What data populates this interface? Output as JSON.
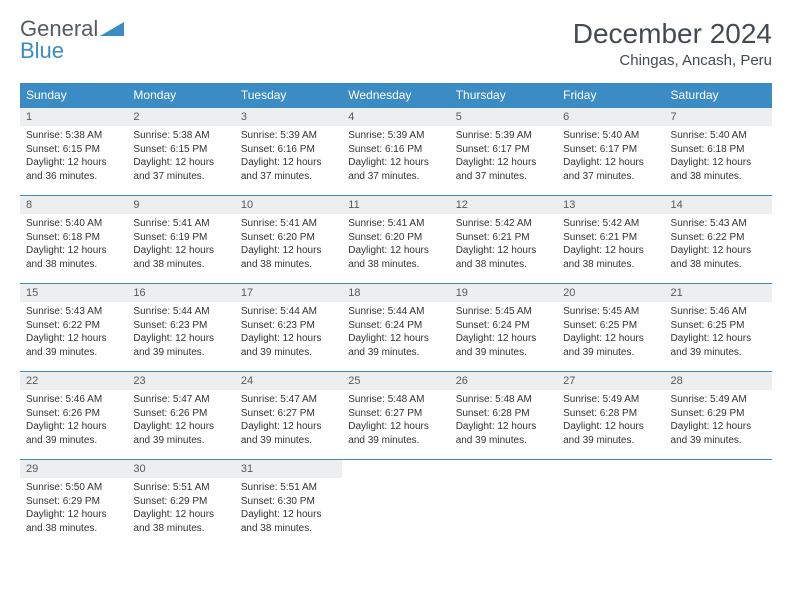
{
  "logo": {
    "text_general": "General",
    "text_blue": "Blue"
  },
  "title": "December 2024",
  "location": "Chingas, Ancash, Peru",
  "colors": {
    "header_bg": "#3b8bc4",
    "header_text": "#ffffff",
    "daynum_bg": "#eceeef",
    "border": "#3b8bc4",
    "body_text": "#333333",
    "title_text": "#444b52"
  },
  "weekdays": [
    "Sunday",
    "Monday",
    "Tuesday",
    "Wednesday",
    "Thursday",
    "Friday",
    "Saturday"
  ],
  "days": [
    {
      "n": 1,
      "sr": "5:38 AM",
      "ss": "6:15 PM",
      "dl": "12 hours and 36 minutes."
    },
    {
      "n": 2,
      "sr": "5:38 AM",
      "ss": "6:15 PM",
      "dl": "12 hours and 37 minutes."
    },
    {
      "n": 3,
      "sr": "5:39 AM",
      "ss": "6:16 PM",
      "dl": "12 hours and 37 minutes."
    },
    {
      "n": 4,
      "sr": "5:39 AM",
      "ss": "6:16 PM",
      "dl": "12 hours and 37 minutes."
    },
    {
      "n": 5,
      "sr": "5:39 AM",
      "ss": "6:17 PM",
      "dl": "12 hours and 37 minutes."
    },
    {
      "n": 6,
      "sr": "5:40 AM",
      "ss": "6:17 PM",
      "dl": "12 hours and 37 minutes."
    },
    {
      "n": 7,
      "sr": "5:40 AM",
      "ss": "6:18 PM",
      "dl": "12 hours and 38 minutes."
    },
    {
      "n": 8,
      "sr": "5:40 AM",
      "ss": "6:18 PM",
      "dl": "12 hours and 38 minutes."
    },
    {
      "n": 9,
      "sr": "5:41 AM",
      "ss": "6:19 PM",
      "dl": "12 hours and 38 minutes."
    },
    {
      "n": 10,
      "sr": "5:41 AM",
      "ss": "6:20 PM",
      "dl": "12 hours and 38 minutes."
    },
    {
      "n": 11,
      "sr": "5:41 AM",
      "ss": "6:20 PM",
      "dl": "12 hours and 38 minutes."
    },
    {
      "n": 12,
      "sr": "5:42 AM",
      "ss": "6:21 PM",
      "dl": "12 hours and 38 minutes."
    },
    {
      "n": 13,
      "sr": "5:42 AM",
      "ss": "6:21 PM",
      "dl": "12 hours and 38 minutes."
    },
    {
      "n": 14,
      "sr": "5:43 AM",
      "ss": "6:22 PM",
      "dl": "12 hours and 38 minutes."
    },
    {
      "n": 15,
      "sr": "5:43 AM",
      "ss": "6:22 PM",
      "dl": "12 hours and 39 minutes."
    },
    {
      "n": 16,
      "sr": "5:44 AM",
      "ss": "6:23 PM",
      "dl": "12 hours and 39 minutes."
    },
    {
      "n": 17,
      "sr": "5:44 AM",
      "ss": "6:23 PM",
      "dl": "12 hours and 39 minutes."
    },
    {
      "n": 18,
      "sr": "5:44 AM",
      "ss": "6:24 PM",
      "dl": "12 hours and 39 minutes."
    },
    {
      "n": 19,
      "sr": "5:45 AM",
      "ss": "6:24 PM",
      "dl": "12 hours and 39 minutes."
    },
    {
      "n": 20,
      "sr": "5:45 AM",
      "ss": "6:25 PM",
      "dl": "12 hours and 39 minutes."
    },
    {
      "n": 21,
      "sr": "5:46 AM",
      "ss": "6:25 PM",
      "dl": "12 hours and 39 minutes."
    },
    {
      "n": 22,
      "sr": "5:46 AM",
      "ss": "6:26 PM",
      "dl": "12 hours and 39 minutes."
    },
    {
      "n": 23,
      "sr": "5:47 AM",
      "ss": "6:26 PM",
      "dl": "12 hours and 39 minutes."
    },
    {
      "n": 24,
      "sr": "5:47 AM",
      "ss": "6:27 PM",
      "dl": "12 hours and 39 minutes."
    },
    {
      "n": 25,
      "sr": "5:48 AM",
      "ss": "6:27 PM",
      "dl": "12 hours and 39 minutes."
    },
    {
      "n": 26,
      "sr": "5:48 AM",
      "ss": "6:28 PM",
      "dl": "12 hours and 39 minutes."
    },
    {
      "n": 27,
      "sr": "5:49 AM",
      "ss": "6:28 PM",
      "dl": "12 hours and 39 minutes."
    },
    {
      "n": 28,
      "sr": "5:49 AM",
      "ss": "6:29 PM",
      "dl": "12 hours and 39 minutes."
    },
    {
      "n": 29,
      "sr": "5:50 AM",
      "ss": "6:29 PM",
      "dl": "12 hours and 38 minutes."
    },
    {
      "n": 30,
      "sr": "5:51 AM",
      "ss": "6:29 PM",
      "dl": "12 hours and 38 minutes."
    },
    {
      "n": 31,
      "sr": "5:51 AM",
      "ss": "6:30 PM",
      "dl": "12 hours and 38 minutes."
    }
  ],
  "labels": {
    "sunrise": "Sunrise:",
    "sunset": "Sunset:",
    "daylight": "Daylight:"
  },
  "layout": {
    "start_weekday": 0,
    "cols": 7,
    "rows": 5
  }
}
